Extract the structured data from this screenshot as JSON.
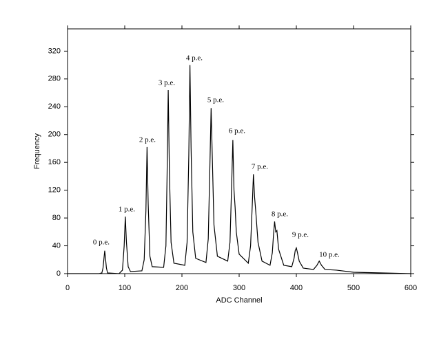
{
  "chart_data": {
    "type": "line",
    "x_label": "ADC Channel",
    "y_label": "Frequency",
    "xlim": [
      0,
      600
    ],
    "xticks": [
      0,
      100,
      200,
      300,
      400,
      500,
      600
    ],
    "ylim": [
      0,
      352
    ],
    "yticks": [
      0,
      40,
      80,
      120,
      160,
      200,
      240,
      280,
      320
    ],
    "annotations": [
      "0 p.e.",
      "1 p.e.",
      "2 p.e.",
      "3 p.e.",
      "4 p.e.",
      "5 p.e.",
      "6 p.e.",
      "7 p.e.",
      "8 p.e.",
      "9 p.e.",
      "10 p.e."
    ],
    "color": "#000000",
    "x": [
      0,
      55,
      60,
      62,
      65,
      68,
      70,
      90,
      96,
      99,
      101,
      103,
      106,
      110,
      130,
      134,
      137,
      139,
      141,
      144,
      148,
      168,
      172,
      174,
      176,
      178,
      181,
      186,
      205,
      209,
      212,
      214,
      216,
      219,
      224,
      242,
      246,
      249,
      251,
      253,
      256,
      262,
      280,
      284,
      287,
      289,
      291,
      293,
      295,
      300,
      316,
      320,
      323,
      325,
      327,
      329,
      333,
      340,
      354,
      358,
      360,
      362,
      364,
      366,
      369,
      378,
      392,
      396,
      398,
      400,
      402,
      405,
      412,
      430,
      436,
      440,
      444,
      450,
      470,
      500,
      550,
      600
    ],
    "values": [
      0,
      0,
      1,
      8,
      33,
      8,
      1,
      0,
      5,
      40,
      82,
      45,
      10,
      3,
      4,
      20,
      90,
      182,
      100,
      25,
      10,
      9,
      40,
      140,
      264,
      150,
      45,
      15,
      12,
      45,
      170,
      300,
      180,
      60,
      22,
      16,
      50,
      160,
      238,
      170,
      70,
      25,
      18,
      45,
      130,
      192,
      120,
      95,
      60,
      28,
      15,
      40,
      100,
      143,
      110,
      90,
      45,
      18,
      12,
      30,
      55,
      75,
      60,
      62,
      35,
      12,
      10,
      22,
      33,
      37,
      30,
      18,
      8,
      6,
      12,
      18,
      12,
      6,
      5,
      2,
      1,
      0
    ]
  }
}
